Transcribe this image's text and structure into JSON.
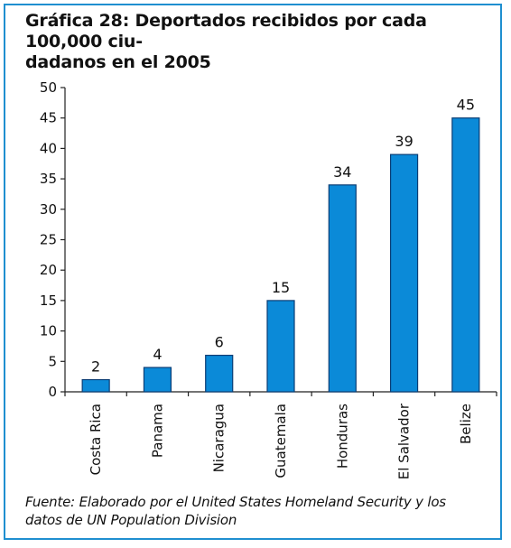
{
  "colors": {
    "frame": "#1f8fd0",
    "bar": "#0b8ad8",
    "bar_border": "#0a3d75",
    "axis": "#222222"
  },
  "chart_data": {
    "type": "bar",
    "title": "Gráfica 28: Deportados recibidos por cada 100,000 ciudadanos en el 2005",
    "title_lines": [
      "Gráfica 28: Deportados recibidos por cada 100,000 ciu-",
      "dadanos en el 2005"
    ],
    "categories": [
      "Costa Rica",
      "Panama",
      "Nicaragua",
      "Guatemala",
      "Honduras",
      "El Salvador",
      "Belize"
    ],
    "values": [
      2,
      4,
      6,
      15,
      34,
      39,
      45
    ],
    "data_labels": [
      "2",
      "4",
      "6",
      "15",
      "34",
      "39",
      "45"
    ],
    "ylim": [
      0,
      50
    ],
    "yticks": [
      "0",
      "5",
      "10",
      "15",
      "20",
      "25",
      "30",
      "35",
      "40",
      "45",
      "50"
    ],
    "xlabel": "",
    "ylabel": "",
    "grid": false,
    "legend": "none",
    "source_lines": [
      "Fuente: Elaborado por el United States Homeland Security y los",
      "datos de UN Population Division"
    ]
  }
}
